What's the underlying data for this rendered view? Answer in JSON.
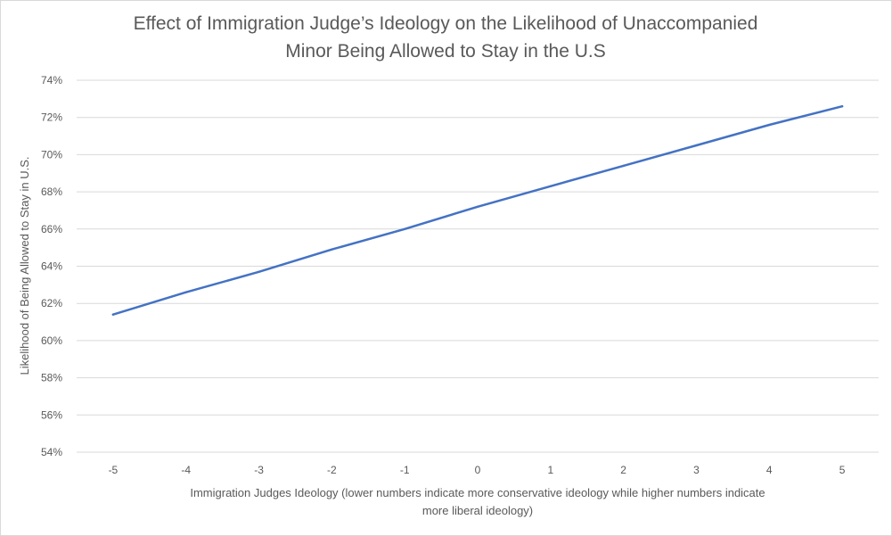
{
  "chart_data": {
    "type": "line",
    "title_lines": [
      "Effect of Immigration Judge’s Ideology on the Likelihood of Unaccompanied",
      "Minor Being Allowed to Stay in the U.S"
    ],
    "xlabel_lines": [
      "Immigration Judges Ideology (lower numbers indicate more conservative ideology while higher numbers indicate",
      "more liberal ideology)"
    ],
    "ylabel": "Likelihood of Being Allowed to Stay in U.S.",
    "x": [
      -5,
      -4,
      -3,
      -2,
      -1,
      0,
      1,
      2,
      3,
      4,
      5
    ],
    "x_tick_labels": [
      "-5",
      "-4",
      "-3",
      "-2",
      "-1",
      "0",
      "1",
      "2",
      "3",
      "4",
      "5"
    ],
    "y_ticks": [
      0.54,
      0.56,
      0.58,
      0.6,
      0.62,
      0.64,
      0.66,
      0.68,
      0.7,
      0.72,
      0.74
    ],
    "y_tick_labels": [
      "54%",
      "56%",
      "58%",
      "60%",
      "62%",
      "64%",
      "66%",
      "68%",
      "70%",
      "72%",
      "74%"
    ],
    "ylim": [
      0.54,
      0.74
    ],
    "series": [
      {
        "values": [
          0.614,
          0.626,
          0.637,
          0.649,
          0.66,
          0.672,
          0.683,
          0.694,
          0.705,
          0.716,
          0.726
        ],
        "color": "#4472c4"
      }
    ],
    "grid": true,
    "legend": "none"
  }
}
